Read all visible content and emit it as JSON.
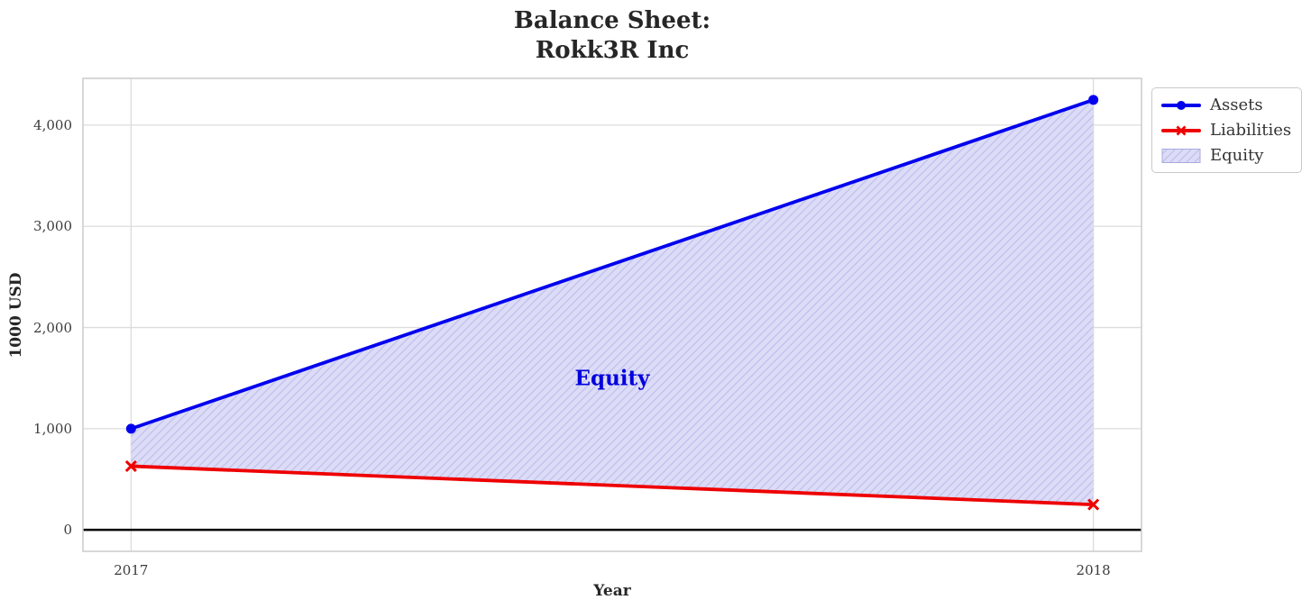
{
  "title": {
    "line1": "Balance Sheet:",
    "line2": "Rokk3R Inc"
  },
  "chart_data": {
    "type": "line",
    "title": "Balance Sheet: Rokk3R Inc",
    "x": [
      2017,
      2018
    ],
    "series": [
      {
        "name": "Assets",
        "values": [
          1000,
          4250
        ],
        "color": "#0000ee",
        "marker": "circle"
      },
      {
        "name": "Liabilities",
        "values": [
          630,
          250
        ],
        "color": "#ee0000",
        "marker": "x"
      }
    ],
    "fill_between": {
      "name": "Equity",
      "upper": "Assets",
      "lower": "Liabilities",
      "equity_values": [
        370,
        4000
      ],
      "face": "#dcdcf7",
      "hatch": "#c2c2ee",
      "edge": "#a9a9e0"
    },
    "annotation": {
      "text": "Equity",
      "x": 2017.5,
      "y": 1500,
      "color": "#0000dd"
    },
    "xlabel": "Year",
    "ylabel": "1000 USD",
    "xticks": [
      2017,
      2018
    ],
    "xtick_labels": [
      "2017",
      "2018"
    ],
    "yticks": [
      0,
      1000,
      2000,
      3000,
      4000
    ],
    "ytick_labels": [
      "0",
      "1,000",
      "2,000",
      "3,000",
      "4,000"
    ],
    "xlim": [
      2016.95,
      2018.05
    ],
    "ylim": [
      -212,
      4462
    ],
    "grid": true,
    "zero_line": true,
    "legend_position": "upper-right-outside"
  },
  "legend": {
    "entries": [
      {
        "label": "Assets",
        "swatch": "line-circle",
        "color": "#0000ee"
      },
      {
        "label": "Liabilities",
        "swatch": "line-x",
        "color": "#ee0000"
      },
      {
        "label": "Equity",
        "swatch": "hatch-patch",
        "color": "#dcdcf7"
      }
    ]
  },
  "colors": {
    "grid": "#dcdcdc",
    "plot_border": "#cccccc",
    "zero_line": "#000000",
    "title_text": "#262626",
    "tick_text": "#3b3b3b"
  }
}
